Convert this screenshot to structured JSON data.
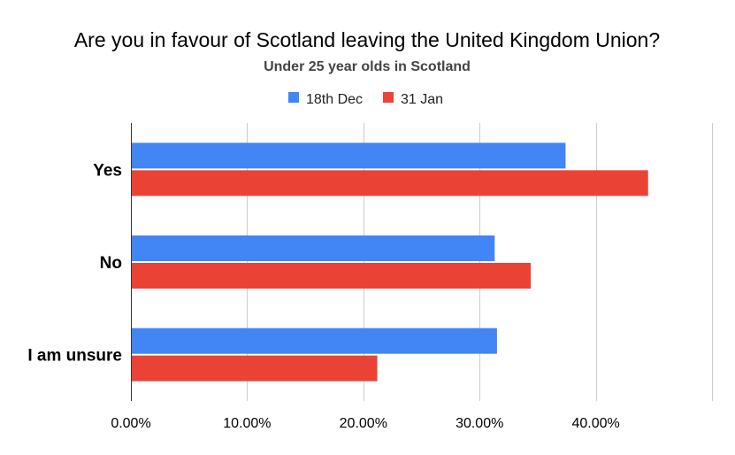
{
  "chart_data": {
    "type": "bar",
    "orientation": "horizontal",
    "title": "Are you in favour of Scotland leaving the United Kingdom Union?",
    "subtitle": "Under 25 year olds in Scotland",
    "categories": [
      "Yes",
      "No",
      "I am unsure"
    ],
    "series": [
      {
        "name": "18th Dec",
        "color": "#4285f4",
        "values": [
          37.4,
          31.3,
          31.5
        ]
      },
      {
        "name": "31 Jan",
        "color": "#ea4335",
        "values": [
          44.5,
          34.4,
          21.2
        ]
      }
    ],
    "xlim": [
      0,
      50
    ],
    "x_ticks": [
      0,
      10,
      20,
      30,
      40,
      50
    ],
    "x_tick_labels": [
      "0.00%",
      "10.00%",
      "20.00%",
      "30.00%",
      "40.00%",
      ""
    ],
    "grid": true,
    "legend_position": "top-center"
  }
}
